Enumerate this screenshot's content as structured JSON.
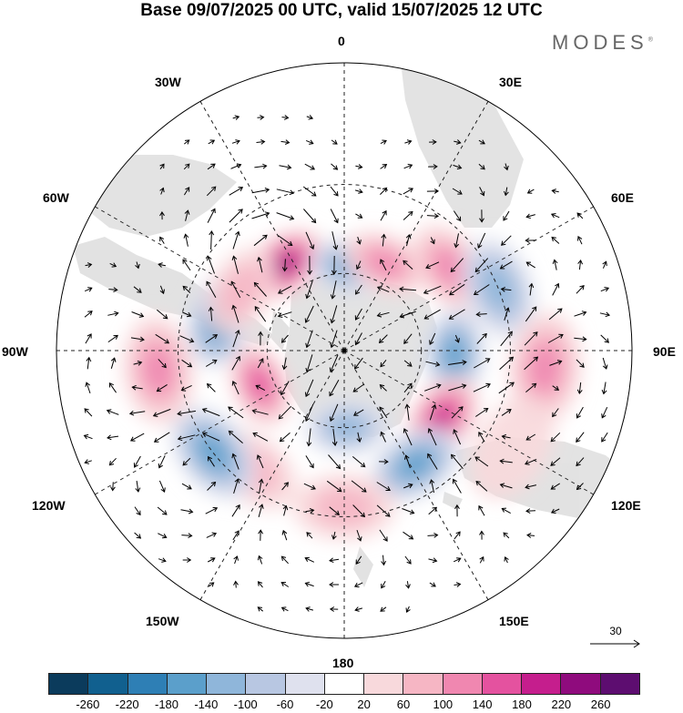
{
  "title": "Base 09/07/2025 00 UTC, valid 15/07/2025 12 UTC",
  "brand": "MODES",
  "brand_mark": "®",
  "longitude_labels": {
    "top": "0",
    "n30e": "30E",
    "n60e": "60E",
    "e90": "90E",
    "n120e": "120E",
    "n150e": "150E",
    "bottom": "180",
    "n150w": "150W",
    "n120w": "120W",
    "w90": "90W",
    "n60w": "60W",
    "n30w": "30W"
  },
  "reference_vector": {
    "label": "30"
  },
  "colorbar": {
    "colors": [
      "#0b3b5c",
      "#11608f",
      "#2e7fb5",
      "#5b9fcb",
      "#8fb6da",
      "#b8c7e2",
      "#dfe1ee",
      "#ffffff",
      "#f8d9dc",
      "#f6b6c4",
      "#f087b0",
      "#e4529f",
      "#c51e8d",
      "#8f0b7d",
      "#5d0d70"
    ],
    "ticks": [
      "-260",
      "-220",
      "-180",
      "-140",
      "-100",
      "-60",
      "-20",
      "20",
      "60",
      "100",
      "140",
      "180",
      "220",
      "260"
    ]
  },
  "anomaly_centers": [
    {
      "lon": -35,
      "colat": 40,
      "value": 230
    },
    {
      "lon": 5,
      "colat": 33,
      "value": -160
    },
    {
      "lon": 25,
      "colat": 37,
      "value": 100
    },
    {
      "lon": 52,
      "colat": 50,
      "value": 120
    },
    {
      "lon": 68,
      "colat": 60,
      "value": -120
    },
    {
      "lon": 92,
      "colat": 42,
      "value": -170
    },
    {
      "lon": 125,
      "colat": 45,
      "value": 180
    },
    {
      "lon": 148,
      "colat": 50,
      "value": -150
    },
    {
      "lon": 178,
      "colat": 30,
      "value": -110
    },
    {
      "lon": 180,
      "colat": 57,
      "value": 80
    },
    {
      "lon": -142,
      "colat": 55,
      "value": 60
    },
    {
      "lon": -128,
      "colat": 60,
      "value": -160
    },
    {
      "lon": -112,
      "colat": 35,
      "value": 170
    },
    {
      "lon": -96,
      "colat": 66,
      "value": 120
    },
    {
      "lon": -76,
      "colat": 48,
      "value": -180
    },
    {
      "lon": -60,
      "colat": 45,
      "value": 80
    },
    {
      "lon": 95,
      "colat": 70,
      "value": 100
    },
    {
      "lon": 120,
      "colat": 68,
      "value": 40
    }
  ]
}
